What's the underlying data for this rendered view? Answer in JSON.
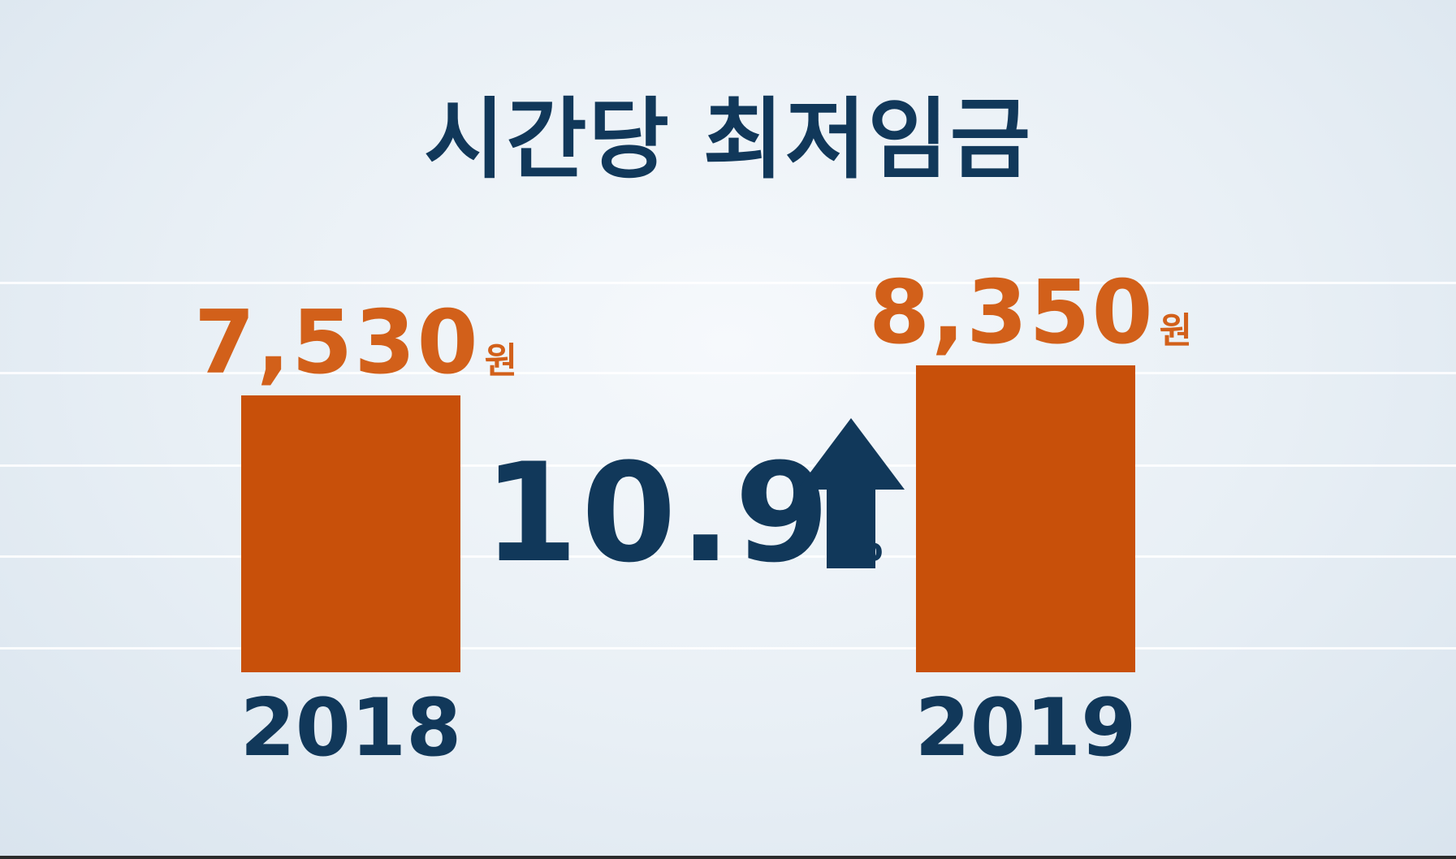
{
  "chart_data": {
    "type": "bar",
    "title": "시간당 최저임금",
    "categories": [
      "2018",
      "2019"
    ],
    "values": [
      7530,
      8350
    ],
    "value_labels": [
      "7,530",
      "8,350"
    ],
    "unit": "원",
    "annotation": {
      "value": "10.9",
      "sign": "%",
      "direction": "up-arrow-icon"
    },
    "ylim": [
      0,
      8350
    ],
    "grid": true,
    "legend": "none"
  },
  "colors": {
    "bar": "#c8500a",
    "value_text": "#d2601a",
    "dark": "#11385a",
    "gridline": "#ffffff"
  }
}
